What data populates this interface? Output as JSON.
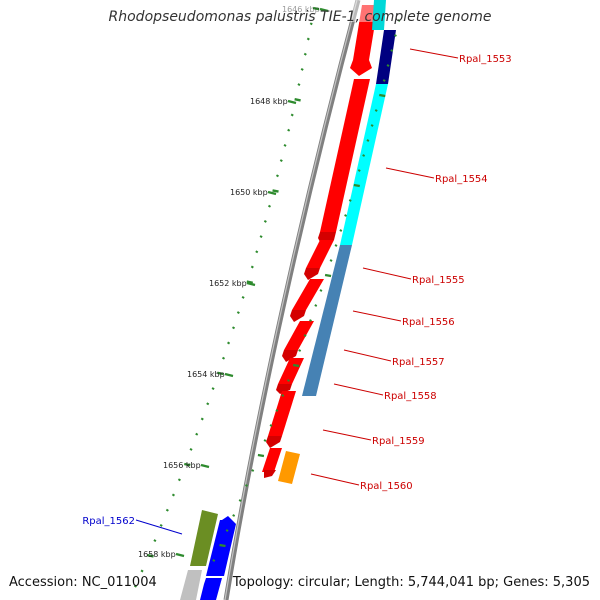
{
  "title": "Rhodopseudomonas palustris TIE-1, complete genome",
  "accession": "Accession: NC_011004",
  "topology": "Topology: circular; Length: 5,744,041 bp; Genes: 5,305",
  "colors": {
    "backbone": "#7f7f7f",
    "tick": "#2e8b2e",
    "forward_cds": "#ff0000",
    "label_red": "#cc0000",
    "label_blue": "#0000cc",
    "cyan": "#00ffff",
    "steelblue": "#4682b4",
    "navy": "#000080",
    "orange": "#ff9900",
    "olive": "#6b8e23",
    "blue": "#0000ff",
    "grey_feature": "#c0c0c0"
  },
  "ticks": {
    "labels": [
      "1646 kbp",
      "1648 kbp",
      "1650 kbp",
      "1652 kbp",
      "1654 kbp",
      "1656 kbp",
      "1658 kbp"
    ]
  },
  "genes": [
    {
      "label": "Rpal_1553",
      "color": "red"
    },
    {
      "label": "Rpal_1554",
      "color": "red"
    },
    {
      "label": "Rpal_1555",
      "color": "red"
    },
    {
      "label": "Rpal_1556",
      "color": "red"
    },
    {
      "label": "Rpal_1557",
      "color": "red"
    },
    {
      "label": "Rpal_1558",
      "color": "red"
    },
    {
      "label": "Rpal_1559",
      "color": "red"
    },
    {
      "label": "Rpal_1560",
      "color": "red"
    },
    {
      "label": "Rpal_1562",
      "color": "blue"
    }
  ]
}
